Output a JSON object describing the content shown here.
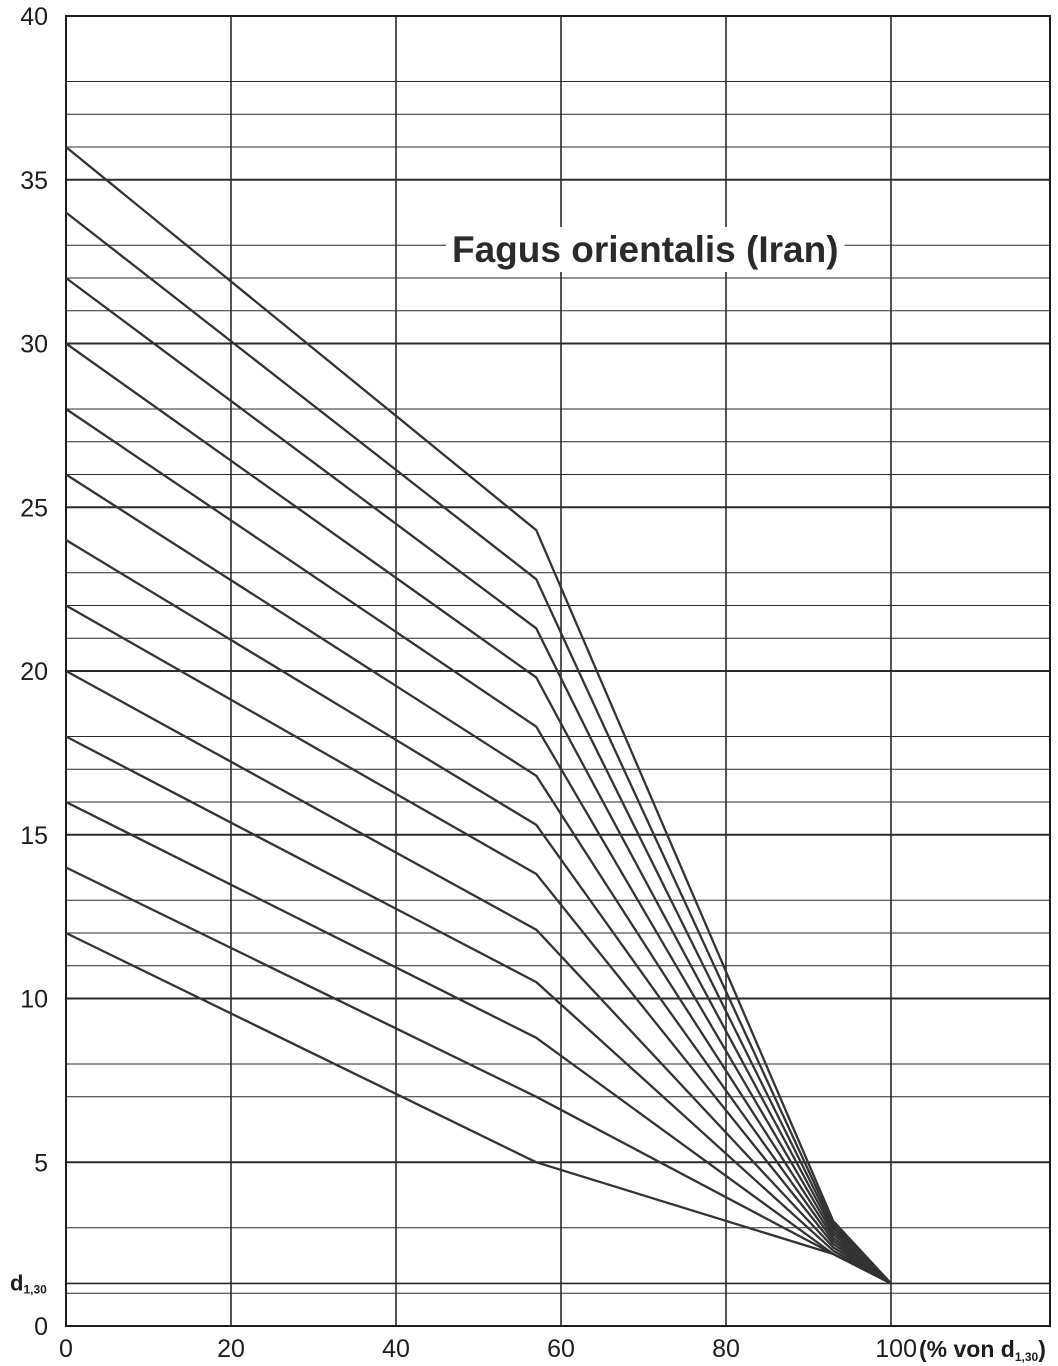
{
  "chart_data": {
    "type": "line",
    "title": "Fagus orientalis (Iran)",
    "x_tick_labels": [
      "0",
      "20",
      "40",
      "60",
      "80",
      "100"
    ],
    "x_unit_label": {
      "prefix": "(% von ",
      "symbol": "d",
      "subscript": "1,30",
      "suffix": ")"
    },
    "y_tick_labels": [
      "0",
      "5",
      "10",
      "15",
      "20",
      "25",
      "30",
      "35",
      "40"
    ],
    "y_reference_label": {
      "symbol": "d",
      "subscript": "1,30"
    },
    "xlim": [
      0,
      100
    ],
    "ylim": [
      0,
      40
    ],
    "grid": true,
    "vertical_grid_x": [
      0,
      20,
      40,
      60,
      80,
      100
    ],
    "horizontal_grid_y": [
      1,
      3,
      5,
      7,
      8,
      10,
      11,
      12,
      13,
      15,
      16,
      17,
      18,
      20,
      21,
      22,
      23,
      25,
      26,
      27,
      28,
      30,
      31,
      32,
      33,
      35,
      36,
      37,
      38,
      40
    ],
    "series": [
      {
        "x": [
          0,
          57,
          93,
          100
        ],
        "y": [
          12,
          5,
          2.2,
          1.3
        ]
      },
      {
        "x": [
          0,
          57,
          93,
          100
        ],
        "y": [
          14,
          7,
          2.2,
          1.3
        ]
      },
      {
        "x": [
          0,
          57,
          93,
          100
        ],
        "y": [
          16,
          8.8,
          2.2,
          1.3
        ]
      },
      {
        "x": [
          0,
          57,
          93,
          100
        ],
        "y": [
          18,
          10.5,
          2.3,
          1.3
        ]
      },
      {
        "x": [
          0,
          57,
          93,
          100
        ],
        "y": [
          20,
          12.1,
          2.4,
          1.3
        ]
      },
      {
        "x": [
          0,
          57,
          93,
          100
        ],
        "y": [
          22,
          13.8,
          2.5,
          1.3
        ]
      },
      {
        "x": [
          0,
          57,
          93,
          100
        ],
        "y": [
          24,
          15.3,
          2.6,
          1.3
        ]
      },
      {
        "x": [
          0,
          57,
          93,
          100
        ],
        "y": [
          26,
          16.8,
          2.7,
          1.3
        ]
      },
      {
        "x": [
          0,
          57,
          93,
          100
        ],
        "y": [
          28,
          18.3,
          2.8,
          1.3
        ]
      },
      {
        "x": [
          0,
          57,
          93,
          100
        ],
        "y": [
          30,
          19.8,
          2.9,
          1.3
        ]
      },
      {
        "x": [
          0,
          57,
          93,
          100
        ],
        "y": [
          32,
          21.3,
          3.0,
          1.3
        ]
      },
      {
        "x": [
          0,
          57,
          93,
          100
        ],
        "y": [
          34,
          22.8,
          3.1,
          1.3
        ]
      },
      {
        "x": [
          0,
          57,
          93,
          100
        ],
        "y": [
          36,
          24.3,
          3.2,
          1.3
        ]
      }
    ]
  }
}
